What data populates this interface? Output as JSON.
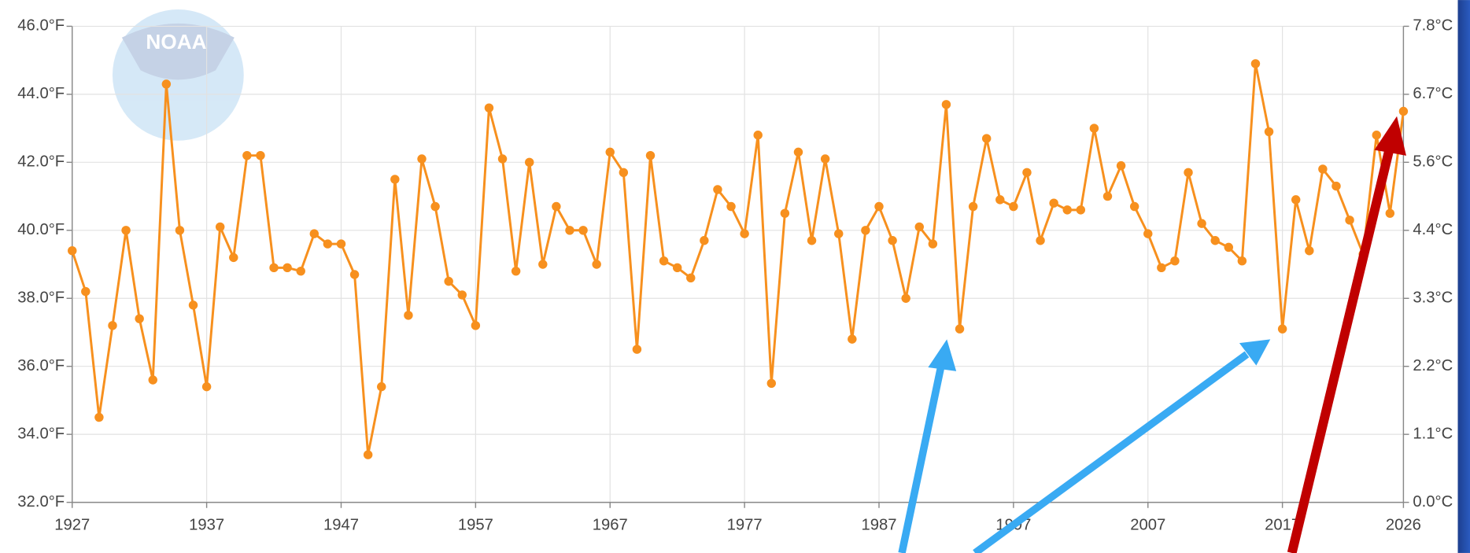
{
  "logo_text": "NOAA",
  "chart_data": {
    "type": "line",
    "x": [
      1927,
      1928,
      1929,
      1930,
      1931,
      1932,
      1933,
      1934,
      1935,
      1936,
      1937,
      1938,
      1939,
      1940,
      1941,
      1942,
      1943,
      1944,
      1945,
      1946,
      1947,
      1948,
      1949,
      1950,
      1951,
      1952,
      1953,
      1954,
      1955,
      1956,
      1957,
      1958,
      1959,
      1960,
      1961,
      1962,
      1963,
      1964,
      1965,
      1966,
      1967,
      1968,
      1969,
      1970,
      1971,
      1972,
      1973,
      1974,
      1975,
      1976,
      1977,
      1978,
      1979,
      1980,
      1981,
      1982,
      1983,
      1984,
      1985,
      1986,
      1987,
      1988,
      1989,
      1990,
      1991,
      1992,
      1993,
      1994,
      1995,
      1996,
      1997,
      1998,
      1999,
      2000,
      2001,
      2002,
      2003,
      2004,
      2005,
      2006,
      2007,
      2008,
      2009,
      2010,
      2011,
      2012,
      2013,
      2014,
      2015,
      2016,
      2017,
      2018,
      2019,
      2020,
      2021,
      2022,
      2023,
      2024,
      2025,
      2026
    ],
    "values": [
      39.4,
      38.2,
      34.5,
      37.2,
      40.0,
      37.4,
      35.6,
      44.3,
      40.0,
      37.8,
      35.4,
      40.1,
      39.2,
      42.2,
      42.2,
      38.9,
      38.9,
      38.8,
      39.9,
      39.6,
      39.6,
      38.7,
      33.4,
      35.4,
      41.5,
      37.5,
      42.1,
      40.7,
      38.5,
      38.1,
      37.2,
      43.6,
      42.1,
      38.8,
      42.0,
      39.0,
      40.7,
      40.0,
      40.0,
      39.0,
      42.3,
      41.7,
      36.5,
      42.2,
      39.1,
      38.9,
      38.6,
      39.7,
      41.2,
      40.7,
      39.9,
      42.8,
      35.5,
      40.5,
      42.3,
      39.7,
      42.1,
      39.9,
      36.8,
      40.0,
      40.7,
      39.7,
      38.0,
      40.1,
      39.6,
      43.7,
      37.1,
      40.7,
      42.7,
      40.9,
      40.7,
      41.7,
      39.7,
      40.8,
      40.6,
      40.6,
      43.0,
      41.0,
      41.9,
      40.7,
      39.9,
      38.9,
      39.1,
      41.7,
      40.2,
      39.7,
      39.5,
      39.1,
      44.9,
      42.9,
      37.1,
      40.9,
      39.4,
      41.8,
      41.3,
      40.3,
      39.3,
      42.8,
      40.5,
      43.5
    ],
    "color": "#f7901e",
    "xlim": [
      1927,
      2026
    ],
    "xticks": [
      1927,
      1937,
      1947,
      1957,
      1967,
      1977,
      1987,
      1997,
      2007,
      2017,
      2026
    ],
    "ylim": [
      32,
      46
    ],
    "yticks": [
      {
        "value": 32,
        "label": "32.0°F"
      },
      {
        "value": 34,
        "label": "34.0°F"
      },
      {
        "value": 36,
        "label": "36.0°F"
      },
      {
        "value": 38,
        "label": "38.0°F"
      },
      {
        "value": 40,
        "label": "40.0°F"
      },
      {
        "value": 42,
        "label": "42.0°F"
      },
      {
        "value": 44,
        "label": "44.0°F"
      },
      {
        "value": 46,
        "label": "46.0°F"
      }
    ],
    "y2lim": [
      0,
      7.778
    ],
    "y2ticks": [
      {
        "value": 0,
        "label": "0.0°C"
      },
      {
        "value": 1.111,
        "label": "1.1°C"
      },
      {
        "value": 2.222,
        "label": "2.2°C"
      },
      {
        "value": 3.333,
        "label": "3.3°C"
      },
      {
        "value": 4.444,
        "label": "4.4°C"
      },
      {
        "value": 5.556,
        "label": "5.6°C"
      },
      {
        "value": 6.667,
        "label": "6.7°C"
      },
      {
        "value": 7.778,
        "label": "7.8°C"
      }
    ],
    "grid": true
  }
}
